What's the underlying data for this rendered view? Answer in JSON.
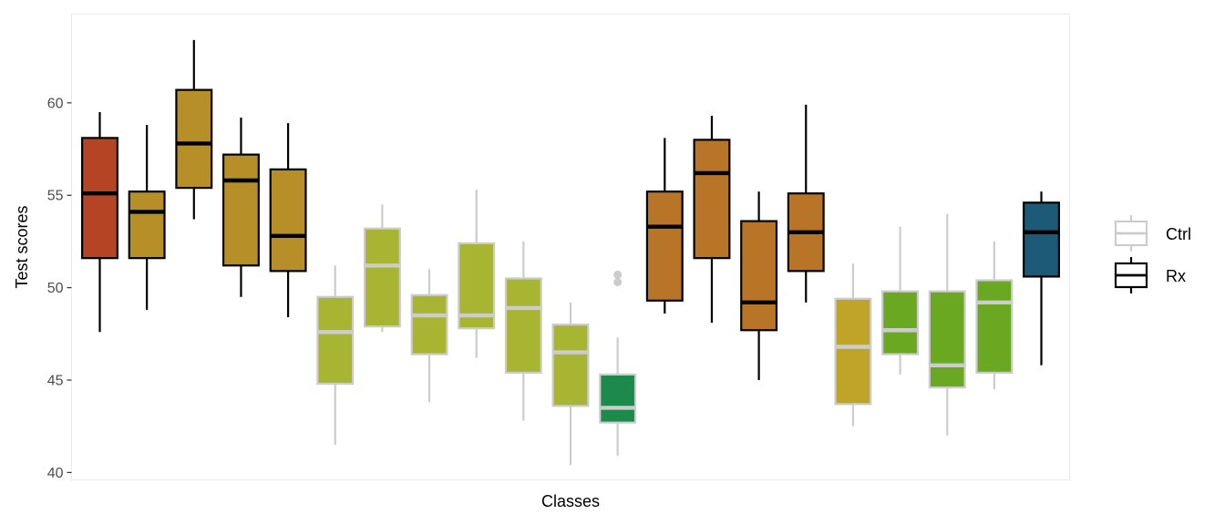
{
  "chart_data": {
    "type": "boxplot",
    "xlabel": "Classes",
    "ylabel": "Test scores",
    "ylim": [
      39.6,
      64.8
    ],
    "yticks": [
      40,
      45,
      50,
      55,
      60
    ],
    "grid": false,
    "legend_position": "right",
    "legend": [
      {
        "label": "Ctrl",
        "outline": "#cccccc"
      },
      {
        "label": "Rx",
        "outline": "#000000"
      }
    ],
    "boxes": [
      {
        "group": "Rx",
        "fill": "#b54425",
        "q1": 51.6,
        "median": 55.1,
        "q3": 58.1,
        "low": 47.6,
        "high": 59.5
      },
      {
        "group": "Rx",
        "fill": "#b78f28",
        "q1": 51.6,
        "median": 54.1,
        "q3": 55.2,
        "low": 48.8,
        "high": 58.8
      },
      {
        "group": "Rx",
        "fill": "#b78f28",
        "q1": 55.4,
        "median": 57.8,
        "q3": 60.7,
        "low": 53.7,
        "high": 63.4
      },
      {
        "group": "Rx",
        "fill": "#b78f28",
        "q1": 51.2,
        "median": 55.8,
        "q3": 57.2,
        "low": 49.5,
        "high": 59.2
      },
      {
        "group": "Rx",
        "fill": "#b78f28",
        "q1": 50.9,
        "median": 52.8,
        "q3": 56.4,
        "low": 48.4,
        "high": 58.9
      },
      {
        "group": "Ctrl",
        "fill": "#a8b533",
        "q1": 44.8,
        "median": 47.6,
        "q3": 49.5,
        "low": 41.5,
        "high": 51.2
      },
      {
        "group": "Ctrl",
        "fill": "#a8b533",
        "q1": 47.9,
        "median": 51.2,
        "q3": 53.2,
        "low": 47.6,
        "high": 54.5
      },
      {
        "group": "Ctrl",
        "fill": "#a8b533",
        "q1": 46.4,
        "median": 48.5,
        "q3": 49.6,
        "low": 43.8,
        "high": 51.0
      },
      {
        "group": "Ctrl",
        "fill": "#a8b533",
        "q1": 47.8,
        "median": 48.5,
        "q3": 52.4,
        "low": 46.2,
        "high": 55.3
      },
      {
        "group": "Ctrl",
        "fill": "#a8b533",
        "q1": 45.4,
        "median": 48.9,
        "q3": 50.5,
        "low": 42.8,
        "high": 52.5
      },
      {
        "group": "Ctrl",
        "fill": "#a8b533",
        "q1": 43.6,
        "median": 46.5,
        "q3": 48.0,
        "low": 40.4,
        "high": 49.2
      },
      {
        "group": "Ctrl",
        "fill": "#1b8a4a",
        "q1": 42.7,
        "median": 43.5,
        "q3": 45.3,
        "low": 40.9,
        "high": 47.3,
        "outliers": [
          50.3,
          50.7
        ]
      },
      {
        "group": "Rx",
        "fill": "#b87427",
        "q1": 49.3,
        "median": 53.3,
        "q3": 55.2,
        "low": 48.6,
        "high": 58.1
      },
      {
        "group": "Rx",
        "fill": "#b87427",
        "q1": 51.6,
        "median": 56.2,
        "q3": 58.0,
        "low": 48.1,
        "high": 59.3
      },
      {
        "group": "Rx",
        "fill": "#b87427",
        "q1": 47.7,
        "median": 49.2,
        "q3": 53.6,
        "low": 45.0,
        "high": 55.2
      },
      {
        "group": "Rx",
        "fill": "#b87427",
        "q1": 50.9,
        "median": 53.0,
        "q3": 55.1,
        "low": 49.2,
        "high": 59.9
      },
      {
        "group": "Ctrl",
        "fill": "#bfa428",
        "q1": 43.7,
        "median": 46.8,
        "q3": 49.4,
        "low": 42.5,
        "high": 51.3
      },
      {
        "group": "Ctrl",
        "fill": "#6aa822",
        "q1": 46.4,
        "median": 47.7,
        "q3": 49.8,
        "low": 45.3,
        "high": 53.3
      },
      {
        "group": "Ctrl",
        "fill": "#6aa822",
        "q1": 44.6,
        "median": 45.8,
        "q3": 49.8,
        "low": 42.0,
        "high": 54.0
      },
      {
        "group": "Ctrl",
        "fill": "#6aa822",
        "q1": 45.4,
        "median": 49.2,
        "q3": 50.4,
        "low": 44.5,
        "high": 52.5
      },
      {
        "group": "Rx",
        "fill": "#1d5a78",
        "q1": 50.6,
        "median": 53.0,
        "q3": 54.6,
        "low": 45.8,
        "high": 55.2
      }
    ]
  }
}
